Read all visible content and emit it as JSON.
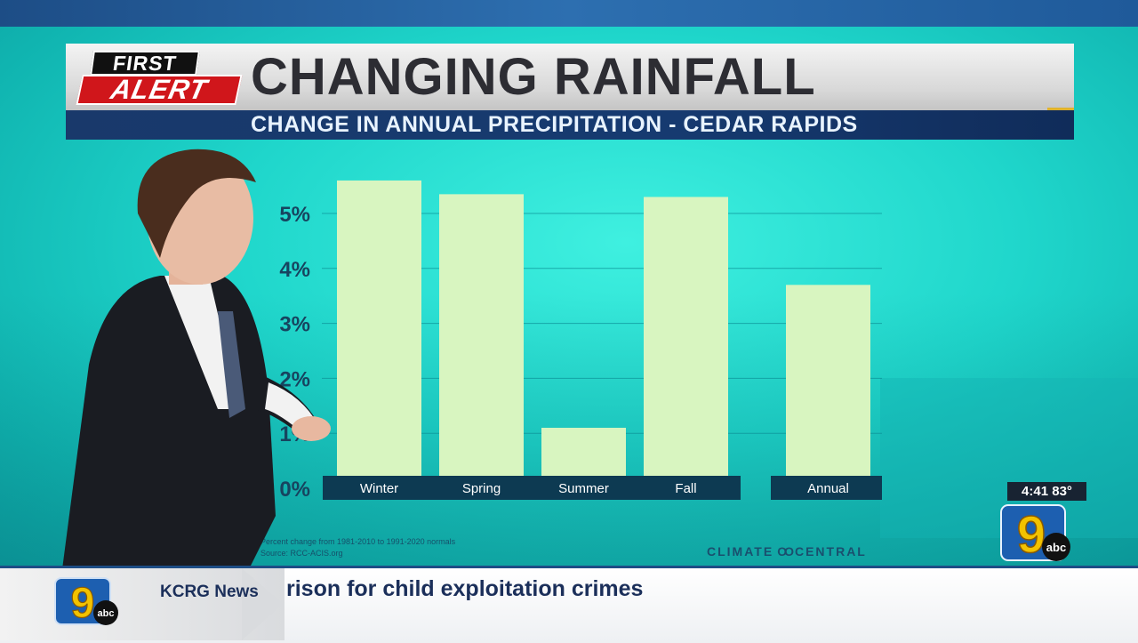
{
  "header": {
    "logo_first": "FIRST",
    "logo_alert": "ALERT",
    "title": "CHANGING RAINFALL",
    "subtitle": "CHANGE IN ANNUAL PRECIPITATION - CEDAR RAPIDS"
  },
  "chart_data": {
    "type": "bar",
    "title": "CHANGING RAINFALL",
    "subtitle": "CHANGE IN ANNUAL PRECIPITATION - CEDAR RAPIDS",
    "xlabel": "",
    "ylabel": "",
    "categories": [
      "Winter",
      "Spring",
      "Summer",
      "Fall",
      "Annual"
    ],
    "values": [
      5.6,
      5.35,
      1.1,
      5.3,
      3.7
    ],
    "yticks": [
      0,
      1,
      2,
      3,
      4,
      5
    ],
    "ytick_labels": [
      "0%",
      "1%",
      "2%",
      "3%",
      "4%",
      "5%"
    ],
    "ylim": [
      0,
      6
    ],
    "grid": true,
    "bar_color": "#d8f5c0",
    "label_bg": "#0d3a52"
  },
  "footnote": {
    "line1": "Percent change from 1981-2010 to 1991-2020 normals",
    "line2": "Source: RCC-ACIS.org"
  },
  "credit": {
    "left": "CLIMATE",
    "mark": "OO",
    "right": "CENTRAL"
  },
  "status": {
    "time": "4:41",
    "temp": "83°"
  },
  "station": {
    "channel": "9",
    "network": "abc"
  },
  "ticker": {
    "label": "KCRG News",
    "headline": "rison for child exploitation crimes"
  },
  "colors": {
    "stage": "#1fd6cb",
    "navy": "#163a70",
    "alert_red": "#d0161b",
    "badge_gold": "#f2c200"
  }
}
